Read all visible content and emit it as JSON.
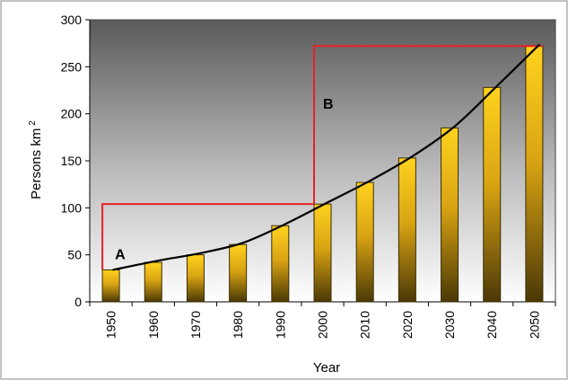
{
  "chart_data": {
    "type": "bar",
    "title": "",
    "xlabel": "Year",
    "ylabel": "Persons km",
    "ylabel_superscript": "2",
    "categories": [
      "1950",
      "1960",
      "1970",
      "1980",
      "1990",
      "2000",
      "2010",
      "2020",
      "2030",
      "2040",
      "2050"
    ],
    "series": [
      {
        "values": [
          34,
          42,
          50,
          61,
          81,
          104,
          127,
          153,
          185,
          228,
          272
        ]
      }
    ],
    "ylim": [
      0,
      300
    ],
    "yticks": [
      0,
      50,
      100,
      150,
      200,
      250,
      300
    ],
    "grid": false,
    "trendline": {
      "type": "curve",
      "color": "#000000"
    },
    "annotations": [
      {
        "label": "A",
        "color": "#e8202a",
        "x_start": "1950",
        "x_end": "2000",
        "y_low": 34,
        "y_high": 104
      },
      {
        "label": "B",
        "color": "#e8202a",
        "x_start": "2000",
        "x_end": "2050",
        "y_low": 104,
        "y_high": 272
      }
    ],
    "colors": {
      "bar_top": "#ffd21e",
      "bar_bottom": "#4a3806",
      "plot_bg_top": "#5a5a5a",
      "plot_bg_bottom": "#ffffff"
    }
  }
}
